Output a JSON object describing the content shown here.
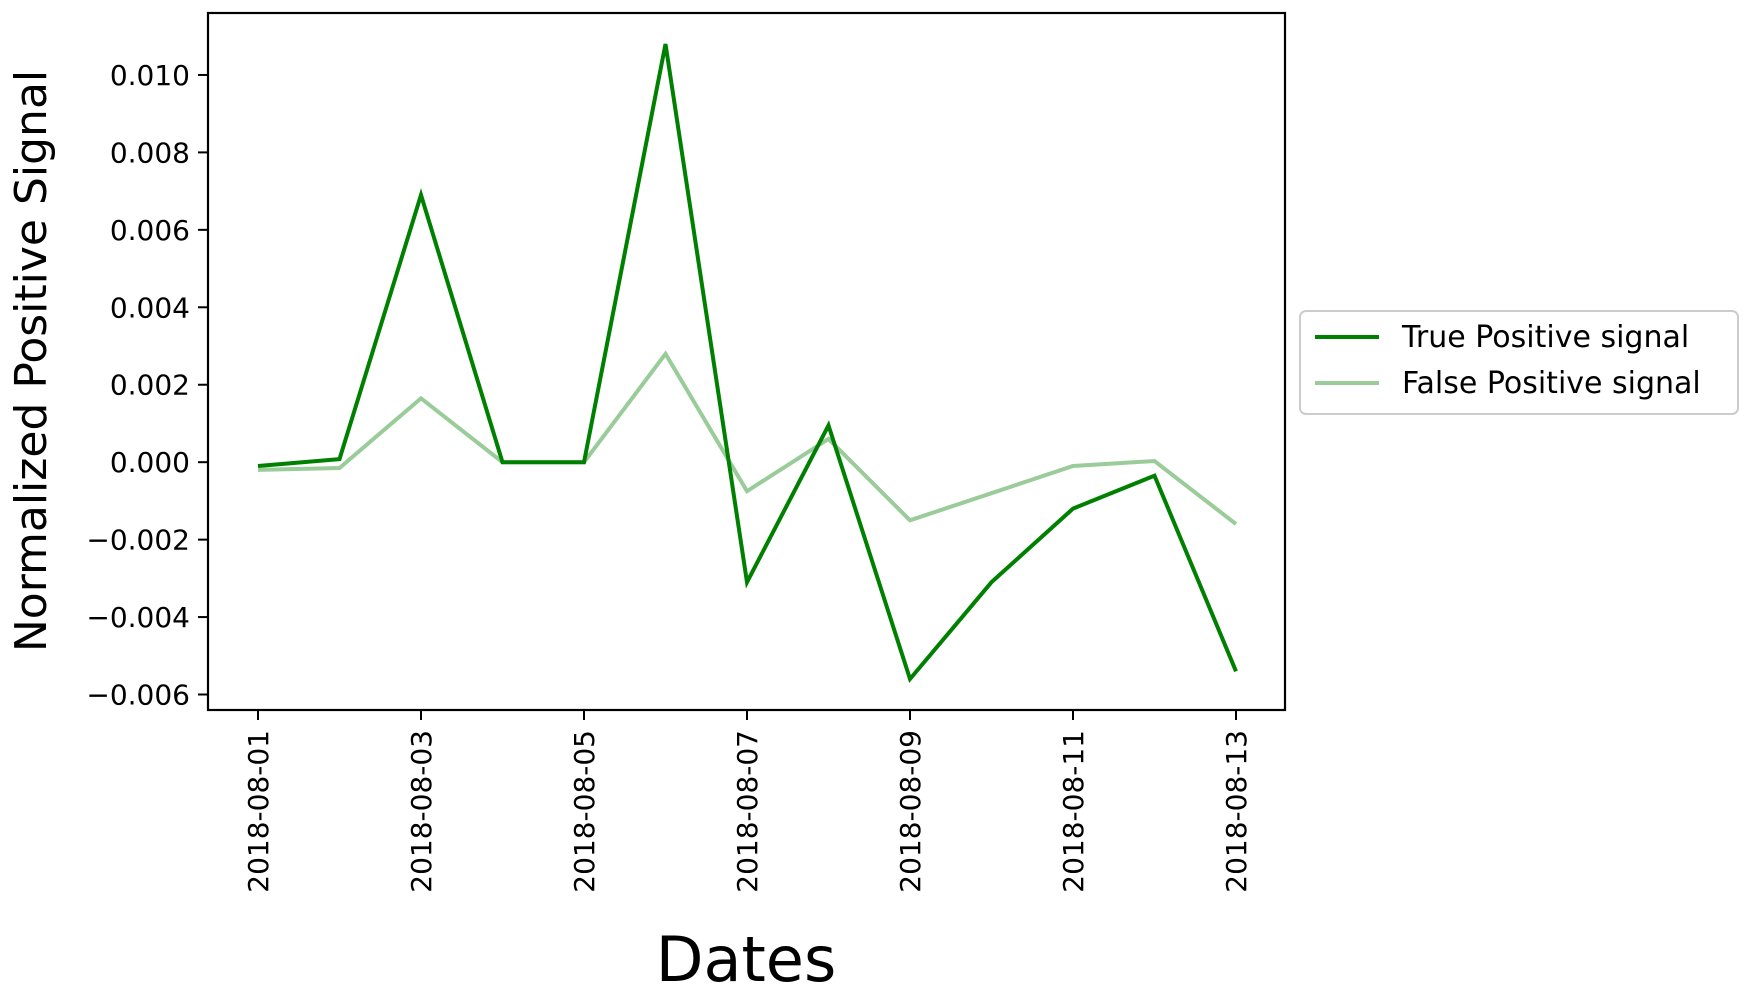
{
  "chart_data": {
    "type": "line",
    "xlabel": "Dates",
    "ylabel": "Normalized Positive Signal",
    "x": [
      "2018-08-01",
      "2018-08-02",
      "2018-08-03",
      "2018-08-04",
      "2018-08-05",
      "2018-08-06",
      "2018-08-07",
      "2018-08-08",
      "2018-08-09",
      "2018-08-10",
      "2018-08-11",
      "2018-08-12",
      "2018-08-13"
    ],
    "x_ticks": [
      "2018-08-01",
      "2018-08-03",
      "2018-08-05",
      "2018-08-07",
      "2018-08-09",
      "2018-08-11",
      "2018-08-13"
    ],
    "y_ticks": [
      "0.010",
      "0.008",
      "0.006",
      "0.004",
      "0.002",
      "0.000",
      "−0.002",
      "−0.004",
      "−0.006"
    ],
    "y_tick_values": [
      0.01,
      0.008,
      0.006,
      0.004,
      0.002,
      0.0,
      -0.002,
      -0.004,
      -0.006
    ],
    "ylim": [
      -0.0064,
      0.0116
    ],
    "xlim": [
      "2018-08-01",
      "2018-08-13"
    ],
    "grid": false,
    "legend_position": "center-right outside",
    "series": [
      {
        "name": "True Positive signal",
        "color": "#008000",
        "values": [
          -0.0001,
          8e-05,
          0.0069,
          0.0,
          0.0,
          0.0108,
          -0.0031,
          0.00095,
          -0.0056,
          -0.0031,
          -0.0012,
          -0.00035,
          -0.0054
        ]
      },
      {
        "name": "False Positive signal",
        "color": "#99cc99",
        "values": [
          -0.0002,
          -0.00015,
          0.00165,
          0.0,
          0.0,
          0.0028,
          -0.00075,
          0.0006,
          -0.0015,
          -0.0008,
          -0.0001,
          3e-05,
          -0.0016
        ]
      }
    ]
  }
}
